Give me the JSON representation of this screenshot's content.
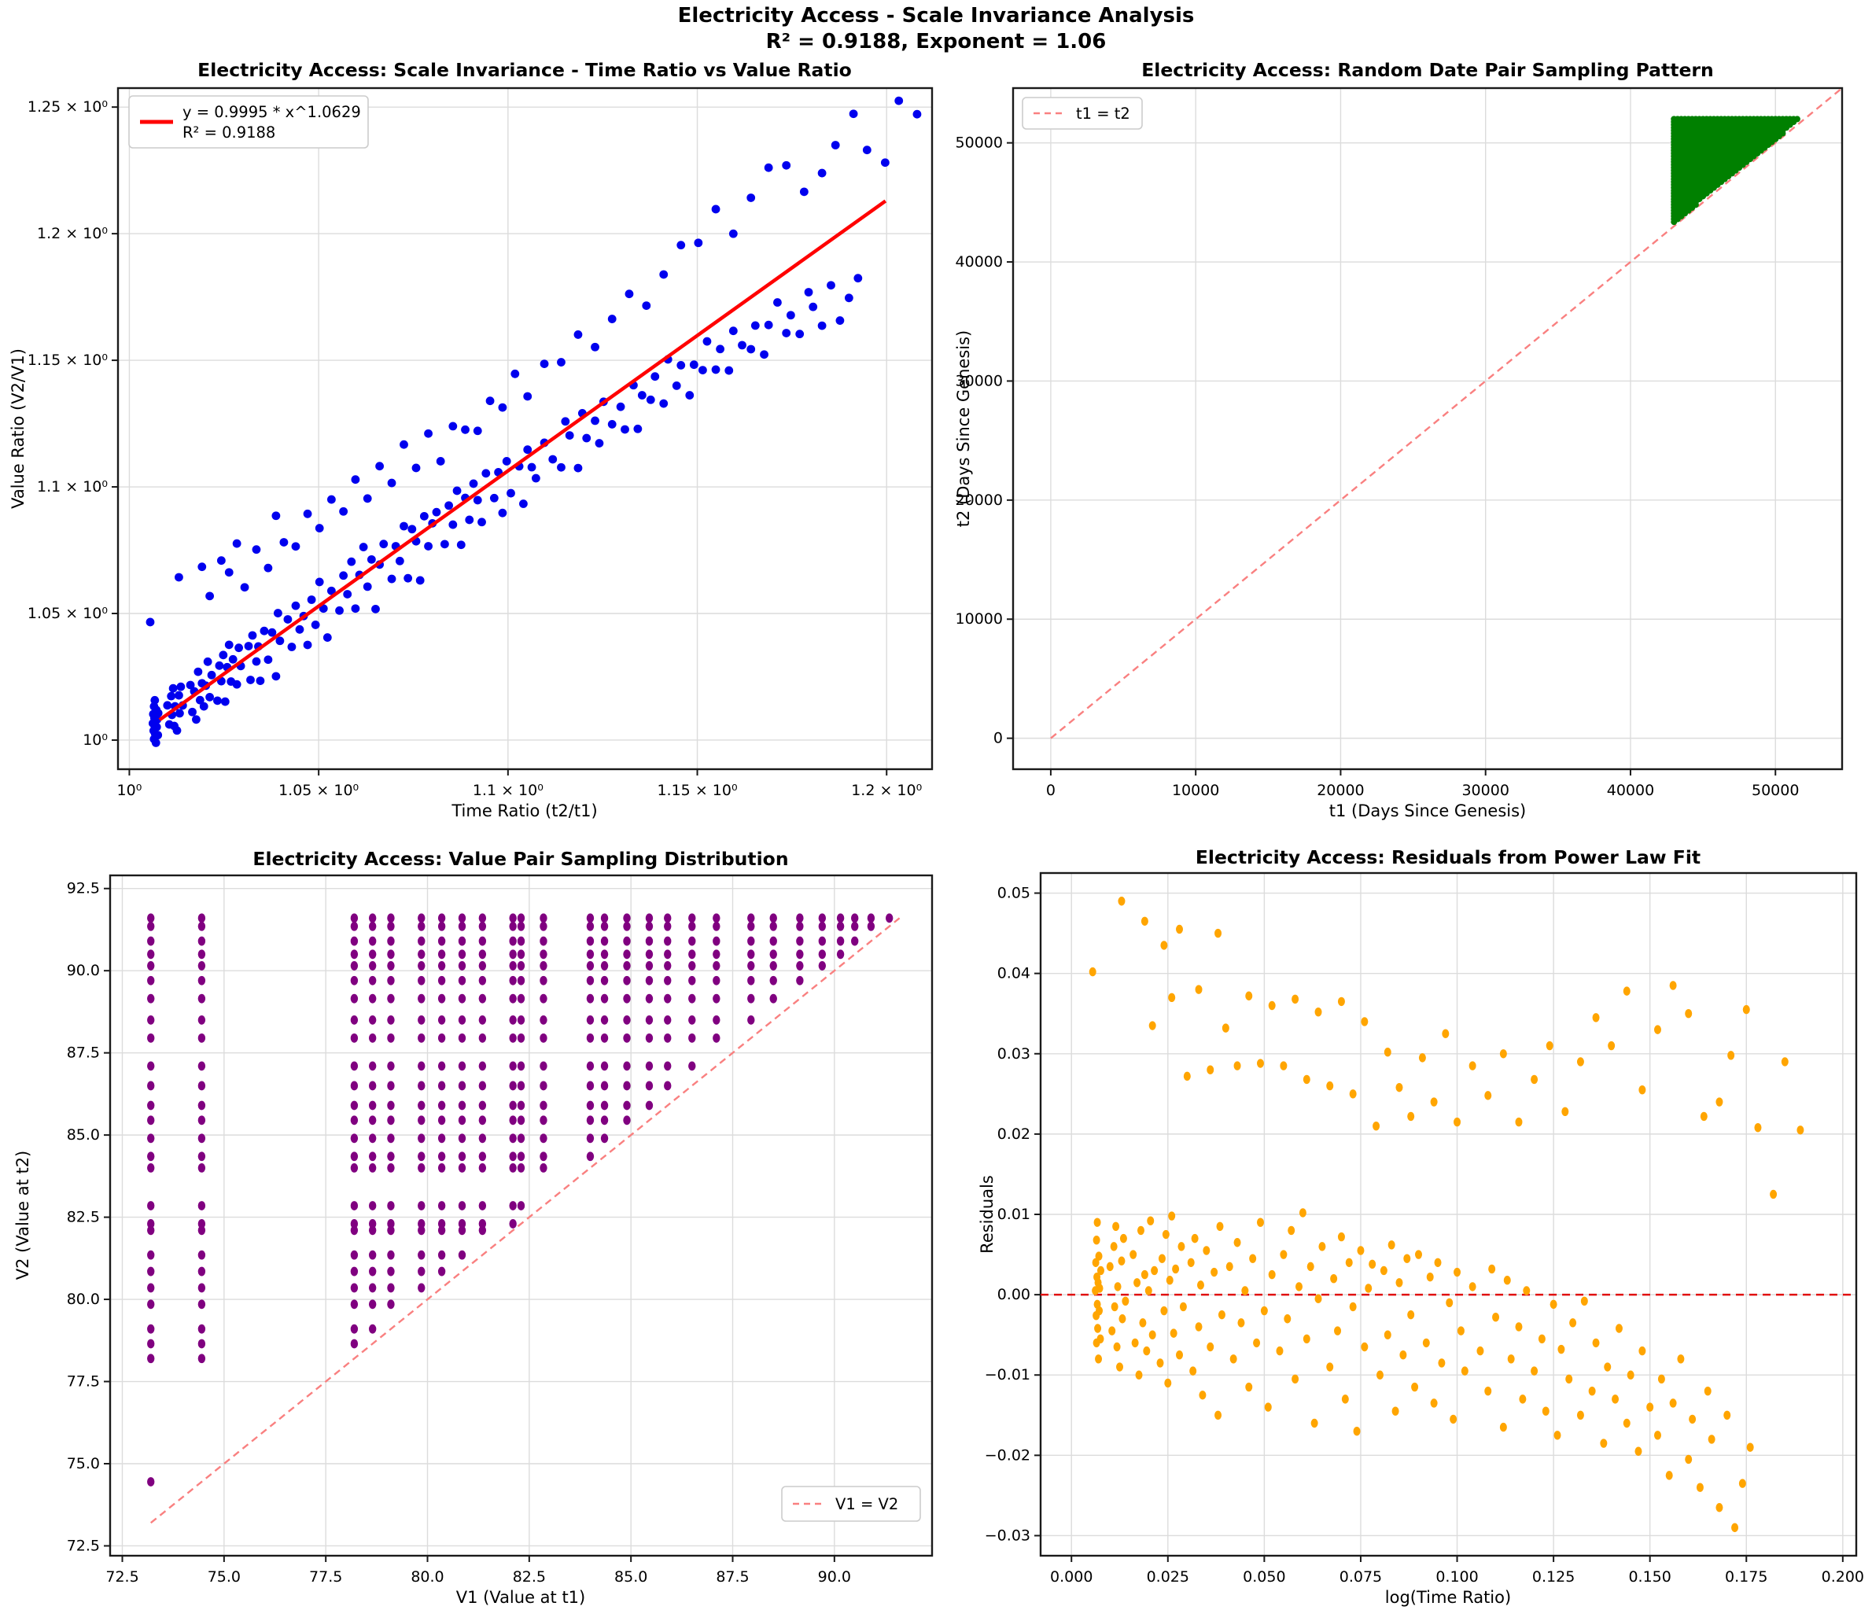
{
  "figure": {
    "suptitle_line1": "Electricity Access - Scale Invariance Analysis",
    "suptitle_line2": "R² = 0.9188, Exponent = 1.06",
    "background": "#ffffff",
    "grid_color": "#dcdcdc",
    "spine_color": "#1a1a1a"
  },
  "chart_data": [
    {
      "id": "scale-invariance",
      "type": "scatter",
      "title": "Electricity Access: Scale Invariance - Time Ratio vs Value Ratio",
      "xlabel": "Time Ratio (t2/t1)",
      "ylabel": "Value Ratio (V2/V1)",
      "xscale": "log",
      "yscale": "log",
      "xlim": [
        0.997,
        1.212
      ],
      "ylim": [
        0.9885,
        1.2575
      ],
      "grid": true,
      "point_color": "#0000ee",
      "xticks": [
        {
          "v": 1.0,
          "label": "10⁰"
        },
        {
          "v": 1.05,
          "label": "1.05 × 10⁰"
        },
        {
          "v": 1.1,
          "label": "1.1 × 10⁰"
        },
        {
          "v": 1.15,
          "label": "1.15 × 10⁰"
        },
        {
          "v": 1.2,
          "label": "1.2 × 10⁰"
        }
      ],
      "yticks": [
        {
          "v": 1.0,
          "label": "10⁰"
        },
        {
          "v": 1.05,
          "label": "1.05 × 10⁰"
        },
        {
          "v": 1.1,
          "label": "1.1 × 10⁰"
        },
        {
          "v": 1.15,
          "label": "1.15 × 10⁰"
        },
        {
          "v": 1.2,
          "label": "1.2 × 10⁰"
        },
        {
          "v": 1.25,
          "label": "1.25 × 10⁰"
        }
      ],
      "fit": {
        "a": 0.9995,
        "b": 1.0629,
        "x_start": 1.008,
        "x_end": 1.1997,
        "color": "#ff0000",
        "legend_line1": "y = 0.9995 * x^1.0629",
        "legend_line2": "R² = 0.9188"
      },
      "points_note": "blue points are derived from residuals chart: x = exp(logx), y = a * exp(b*logx + residual)"
    },
    {
      "id": "date-pair-sampling",
      "type": "scatter",
      "title": "Electricity Access: Random Date Pair Sampling Pattern",
      "xlabel": "t1 (Days Since Genesis)",
      "ylabel": "t2 (Days Since Genesis)",
      "xlim": [
        -2600,
        54600
      ],
      "ylim": [
        -2600,
        54600
      ],
      "grid": true,
      "point_color": "#008000",
      "xticks": [
        {
          "v": 0,
          "label": "0"
        },
        {
          "v": 10000,
          "label": "10000"
        },
        {
          "v": 20000,
          "label": "20000"
        },
        {
          "v": 30000,
          "label": "30000"
        },
        {
          "v": 40000,
          "label": "40000"
        },
        {
          "v": 50000,
          "label": "50000"
        }
      ],
      "yticks": [
        {
          "v": 0,
          "label": "0"
        },
        {
          "v": 10000,
          "label": "10000"
        },
        {
          "v": 20000,
          "label": "20000"
        },
        {
          "v": 30000,
          "label": "30000"
        },
        {
          "v": 40000,
          "label": "40000"
        },
        {
          "v": 50000,
          "label": "50000"
        }
      ],
      "region": {
        "shape": "upper-triangle-dense-dots",
        "t1_min": 43000,
        "t1_max": 52000,
        "t2_max": 52000,
        "t2_offset_min": 300,
        "col_step": 250,
        "row_step": 240
      },
      "diagonal": {
        "label": "t1 = t2",
        "color": "#f98080",
        "from": 0,
        "to": 54600
      }
    },
    {
      "id": "value-pair-sampling",
      "type": "scatter",
      "title": "Electricity Access: Value Pair Sampling Distribution",
      "xlabel": "V1 (Value at t1)",
      "ylabel": "V2 (Value at t2)",
      "xlim": [
        72.2,
        92.4
      ],
      "ylim": [
        72.2,
        92.9
      ],
      "grid": true,
      "point_color": "#800080",
      "xticks": [
        {
          "v": 72.5,
          "label": "72.5"
        },
        {
          "v": 75.0,
          "label": "75.0"
        },
        {
          "v": 77.5,
          "label": "77.5"
        },
        {
          "v": 80.0,
          "label": "80.0"
        },
        {
          "v": 82.5,
          "label": "82.5"
        },
        {
          "v": 85.0,
          "label": "85.0"
        },
        {
          "v": 87.5,
          "label": "87.5"
        },
        {
          "v": 90.0,
          "label": "90.0"
        }
      ],
      "yticks": [
        {
          "v": 72.5,
          "label": "72.5"
        },
        {
          "v": 75.0,
          "label": "75.0"
        },
        {
          "v": 77.5,
          "label": "77.5"
        },
        {
          "v": 80.0,
          "label": "80.0"
        },
        {
          "v": 82.5,
          "label": "82.5"
        },
        {
          "v": 85.0,
          "label": "85.0"
        },
        {
          "v": 87.5,
          "label": "87.5"
        },
        {
          "v": 90.0,
          "label": "90.0"
        },
        {
          "v": 92.5,
          "label": "92.5"
        }
      ],
      "distinct_values": [
        73.2,
        74.45,
        78.2,
        78.65,
        79.1,
        79.85,
        80.35,
        80.85,
        81.35,
        82.1,
        82.3,
        82.85,
        84.0,
        84.35,
        84.9,
        85.45,
        85.9,
        86.5,
        87.1,
        87.95,
        88.5,
        89.15,
        89.7,
        90.15,
        90.5,
        90.9,
        91.35,
        91.6
      ],
      "pair_rule": "all pairs (v_i, v_j) with i < j (V2 > V1)",
      "diagonal": {
        "label": "V1 = V2",
        "color": "#f98080",
        "from": 73.2,
        "to": 91.6
      }
    },
    {
      "id": "residuals",
      "type": "scatter",
      "title": "Electricity Access: Residuals from Power Law Fit",
      "xlabel": "log(Time Ratio)",
      "ylabel": "Residuals",
      "xlim": [
        -0.008,
        0.2035
      ],
      "ylim": [
        -0.0325,
        0.0525
      ],
      "grid": true,
      "point_color": "#ffa500",
      "zero_line": {
        "y": 0.0,
        "color": "#e01010"
      },
      "xticks": [
        {
          "v": 0.0,
          "label": "0.000"
        },
        {
          "v": 0.025,
          "label": "0.025"
        },
        {
          "v": 0.05,
          "label": "0.050"
        },
        {
          "v": 0.075,
          "label": "0.075"
        },
        {
          "v": 0.1,
          "label": "0.100"
        },
        {
          "v": 0.125,
          "label": "0.125"
        },
        {
          "v": 0.15,
          "label": "0.150"
        },
        {
          "v": 0.175,
          "label": "0.175"
        },
        {
          "v": 0.2,
          "label": "0.200"
        }
      ],
      "yticks": [
        {
          "v": 0.05,
          "label": "0.05"
        },
        {
          "v": 0.04,
          "label": "0.04"
        },
        {
          "v": 0.03,
          "label": "0.03"
        },
        {
          "v": 0.02,
          "label": "0.02"
        },
        {
          "v": 0.01,
          "label": "0.01"
        },
        {
          "v": 0.0,
          "label": "0.00"
        },
        {
          "v": -0.01,
          "label": "−0.01"
        },
        {
          "v": -0.02,
          "label": "−0.02"
        },
        {
          "v": -0.03,
          "label": "−0.03"
        }
      ],
      "points": [
        [
          0.0062,
          0.0005
        ],
        [
          0.0063,
          0.004
        ],
        [
          0.0064,
          -0.0026
        ],
        [
          0.0065,
          0.0068
        ],
        [
          0.0065,
          -0.006
        ],
        [
          0.0066,
          0.0022
        ],
        [
          0.0067,
          -0.0012
        ],
        [
          0.0067,
          0.009
        ],
        [
          0.0068,
          -0.0042
        ],
        [
          0.0069,
          0.0015
        ],
        [
          0.007,
          -0.008
        ],
        [
          0.0071,
          0.0048
        ],
        [
          0.0072,
          -0.002
        ],
        [
          0.0073,
          0.0008
        ],
        [
          0.0075,
          -0.0055
        ],
        [
          0.0076,
          0.003
        ],
        [
          0.01,
          0.0035
        ],
        [
          0.0105,
          -0.0045
        ],
        [
          0.011,
          0.006
        ],
        [
          0.0112,
          -0.0015
        ],
        [
          0.0115,
          0.0085
        ],
        [
          0.0118,
          -0.0065
        ],
        [
          0.012,
          0.001
        ],
        [
          0.0125,
          -0.009
        ],
        [
          0.013,
          0.0042
        ],
        [
          0.0132,
          -0.003
        ],
        [
          0.0135,
          0.007
        ],
        [
          0.014,
          -0.0008
        ],
        [
          0.016,
          0.005
        ],
        [
          0.0165,
          -0.006
        ],
        [
          0.017,
          0.0015
        ],
        [
          0.0175,
          -0.01
        ],
        [
          0.018,
          0.008
        ],
        [
          0.0185,
          -0.0035
        ],
        [
          0.019,
          0.0025
        ],
        [
          0.0195,
          -0.007
        ],
        [
          0.02,
          0.0005
        ],
        [
          0.0205,
          0.0092
        ],
        [
          0.021,
          -0.005
        ],
        [
          0.0215,
          0.003
        ],
        [
          0.023,
          -0.0085
        ],
        [
          0.0235,
          0.0045
        ],
        [
          0.024,
          -0.002
        ],
        [
          0.0245,
          0.0075
        ],
        [
          0.025,
          -0.011
        ],
        [
          0.0255,
          0.0018
        ],
        [
          0.026,
          0.0098
        ],
        [
          0.0265,
          -0.0048
        ],
        [
          0.027,
          0.0032
        ],
        [
          0.028,
          -0.0075
        ],
        [
          0.0285,
          0.006
        ],
        [
          0.029,
          -0.0015
        ],
        [
          0.031,
          0.004
        ],
        [
          0.0315,
          -0.0095
        ],
        [
          0.032,
          0.007
        ],
        [
          0.033,
          -0.004
        ],
        [
          0.0335,
          0.0012
        ],
        [
          0.034,
          -0.0125
        ],
        [
          0.035,
          0.0055
        ],
        [
          0.036,
          -0.0065
        ],
        [
          0.037,
          0.0028
        ],
        [
          0.038,
          -0.015
        ],
        [
          0.0385,
          0.0085
        ],
        [
          0.039,
          -0.0025
        ],
        [
          0.041,
          0.0035
        ],
        [
          0.042,
          -0.008
        ],
        [
          0.043,
          0.0065
        ],
        [
          0.044,
          -0.0035
        ],
        [
          0.045,
          0.0005
        ],
        [
          0.046,
          -0.0115
        ],
        [
          0.047,
          0.0045
        ],
        [
          0.048,
          -0.006
        ],
        [
          0.049,
          0.009
        ],
        [
          0.05,
          -0.002
        ],
        [
          0.051,
          -0.014
        ],
        [
          0.052,
          0.0025
        ],
        [
          0.054,
          -0.007
        ],
        [
          0.055,
          0.005
        ],
        [
          0.056,
          -0.003
        ],
        [
          0.057,
          0.008
        ],
        [
          0.058,
          -0.0105
        ],
        [
          0.059,
          0.001
        ],
        [
          0.06,
          0.0102
        ],
        [
          0.061,
          -0.0055
        ],
        [
          0.062,
          0.0035
        ],
        [
          0.063,
          -0.016
        ],
        [
          0.064,
          -0.0005
        ],
        [
          0.065,
          0.006
        ],
        [
          0.067,
          -0.009
        ],
        [
          0.068,
          0.002
        ],
        [
          0.069,
          -0.0045
        ],
        [
          0.07,
          0.0072
        ],
        [
          0.071,
          -0.013
        ],
        [
          0.072,
          0.004
        ],
        [
          0.073,
          -0.0015
        ],
        [
          0.074,
          -0.017
        ],
        [
          0.075,
          0.0055
        ],
        [
          0.076,
          -0.0065
        ],
        [
          0.077,
          0.0008
        ],
        [
          0.078,
          0.0038
        ],
        [
          0.08,
          -0.01
        ],
        [
          0.081,
          0.003
        ],
        [
          0.082,
          -0.005
        ],
        [
          0.083,
          0.0062
        ],
        [
          0.084,
          -0.0145
        ],
        [
          0.085,
          0.0015
        ],
        [
          0.086,
          -0.0075
        ],
        [
          0.087,
          0.0045
        ],
        [
          0.088,
          -0.0025
        ],
        [
          0.089,
          -0.0115
        ],
        [
          0.09,
          0.005
        ],
        [
          0.092,
          -0.006
        ],
        [
          0.093,
          0.0022
        ],
        [
          0.094,
          -0.0135
        ],
        [
          0.095,
          0.004
        ],
        [
          0.096,
          -0.0085
        ],
        [
          0.098,
          -0.001
        ],
        [
          0.099,
          -0.0155
        ],
        [
          0.1,
          0.0028
        ],
        [
          0.101,
          -0.0045
        ],
        [
          0.102,
          -0.0095
        ],
        [
          0.104,
          0.001
        ],
        [
          0.106,
          -0.007
        ],
        [
          0.108,
          -0.012
        ],
        [
          0.109,
          0.0032
        ],
        [
          0.11,
          -0.0028
        ],
        [
          0.112,
          -0.0165
        ],
        [
          0.113,
          0.0018
        ],
        [
          0.114,
          -0.008
        ],
        [
          0.116,
          -0.004
        ],
        [
          0.117,
          -0.013
        ],
        [
          0.118,
          0.0005
        ],
        [
          0.12,
          -0.0095
        ],
        [
          0.122,
          -0.0055
        ],
        [
          0.123,
          -0.0145
        ],
        [
          0.125,
          -0.0012
        ],
        [
          0.126,
          -0.0175
        ],
        [
          0.127,
          -0.0068
        ],
        [
          0.129,
          -0.0105
        ],
        [
          0.13,
          -0.0035
        ],
        [
          0.132,
          -0.015
        ],
        [
          0.133,
          -0.0008
        ],
        [
          0.135,
          -0.012
        ],
        [
          0.136,
          -0.006
        ],
        [
          0.138,
          -0.0185
        ],
        [
          0.139,
          -0.009
        ],
        [
          0.141,
          -0.013
        ],
        [
          0.142,
          -0.0042
        ],
        [
          0.144,
          -0.016
        ],
        [
          0.145,
          -0.01
        ],
        [
          0.147,
          -0.0195
        ],
        [
          0.148,
          -0.007
        ],
        [
          0.15,
          -0.014
        ],
        [
          0.152,
          -0.0175
        ],
        [
          0.153,
          -0.0105
        ],
        [
          0.155,
          -0.0225
        ],
        [
          0.156,
          -0.0135
        ],
        [
          0.158,
          -0.008
        ],
        [
          0.16,
          -0.0205
        ],
        [
          0.161,
          -0.0155
        ],
        [
          0.163,
          -0.024
        ],
        [
          0.165,
          -0.012
        ],
        [
          0.166,
          -0.018
        ],
        [
          0.168,
          -0.0265
        ],
        [
          0.17,
          -0.015
        ],
        [
          0.172,
          -0.029
        ],
        [
          0.174,
          -0.0235
        ],
        [
          0.176,
          -0.019
        ],
        [
          0.0055,
          0.0402
        ],
        [
          0.013,
          0.049
        ],
        [
          0.019,
          0.0465
        ],
        [
          0.021,
          0.0335
        ],
        [
          0.024,
          0.0435
        ],
        [
          0.026,
          0.037
        ],
        [
          0.028,
          0.0455
        ],
        [
          0.03,
          0.0272
        ],
        [
          0.033,
          0.038
        ],
        [
          0.036,
          0.028
        ],
        [
          0.038,
          0.045
        ],
        [
          0.04,
          0.0332
        ],
        [
          0.043,
          0.0285
        ],
        [
          0.046,
          0.0372
        ],
        [
          0.049,
          0.0288
        ],
        [
          0.052,
          0.036
        ],
        [
          0.055,
          0.0285
        ],
        [
          0.058,
          0.0368
        ],
        [
          0.061,
          0.0268
        ],
        [
          0.064,
          0.0352
        ],
        [
          0.067,
          0.026
        ],
        [
          0.07,
          0.0365
        ],
        [
          0.073,
          0.025
        ],
        [
          0.076,
          0.034
        ],
        [
          0.079,
          0.021
        ],
        [
          0.082,
          0.0302
        ],
        [
          0.085,
          0.0258
        ],
        [
          0.088,
          0.0222
        ],
        [
          0.091,
          0.0295
        ],
        [
          0.094,
          0.024
        ],
        [
          0.097,
          0.0325
        ],
        [
          0.1,
          0.0215
        ],
        [
          0.104,
          0.0285
        ],
        [
          0.108,
          0.0248
        ],
        [
          0.112,
          0.03
        ],
        [
          0.116,
          0.0215
        ],
        [
          0.12,
          0.0268
        ],
        [
          0.124,
          0.031
        ],
        [
          0.128,
          0.0228
        ],
        [
          0.132,
          0.029
        ],
        [
          0.136,
          0.0345
        ],
        [
          0.14,
          0.031
        ],
        [
          0.144,
          0.0378
        ],
        [
          0.148,
          0.0255
        ],
        [
          0.152,
          0.033
        ],
        [
          0.156,
          0.0385
        ],
        [
          0.16,
          0.035
        ],
        [
          0.164,
          0.0222
        ],
        [
          0.168,
          0.024
        ],
        [
          0.171,
          0.0298
        ],
        [
          0.175,
          0.0355
        ],
        [
          0.178,
          0.0208
        ],
        [
          0.182,
          0.0125
        ],
        [
          0.185,
          0.029
        ],
        [
          0.189,
          0.0205
        ]
      ]
    }
  ]
}
